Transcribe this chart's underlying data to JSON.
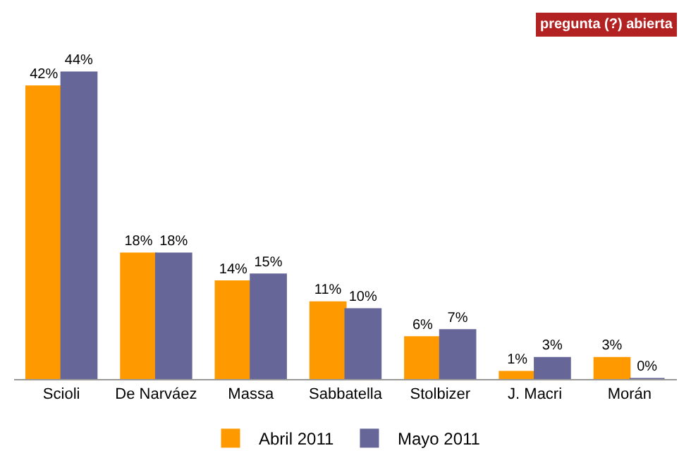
{
  "chart_data": {
    "type": "bar",
    "categories": [
      "Scioli",
      "De Narváez",
      "Massa",
      "Sabbatella",
      "Stolbizer",
      "J. Macri",
      "Morán"
    ],
    "series": [
      {
        "name": "Abril 2011",
        "color": "#ff9900",
        "values": [
          42,
          18,
          14,
          11,
          6,
          1,
          3
        ],
        "value_labels": [
          "42%",
          "18%",
          "14%",
          "11%",
          "6%",
          "1%",
          "3%"
        ]
      },
      {
        "name": "Mayo 2011",
        "color": "#666699",
        "values": [
          44,
          18,
          15,
          10,
          7,
          3,
          0
        ],
        "value_labels": [
          "44%",
          "18%",
          "15%",
          "10%",
          "7%",
          "3%",
          "0%"
        ]
      }
    ],
    "legend": "bottom",
    "annotations": [
      "pregunta (?) abierta"
    ]
  }
}
